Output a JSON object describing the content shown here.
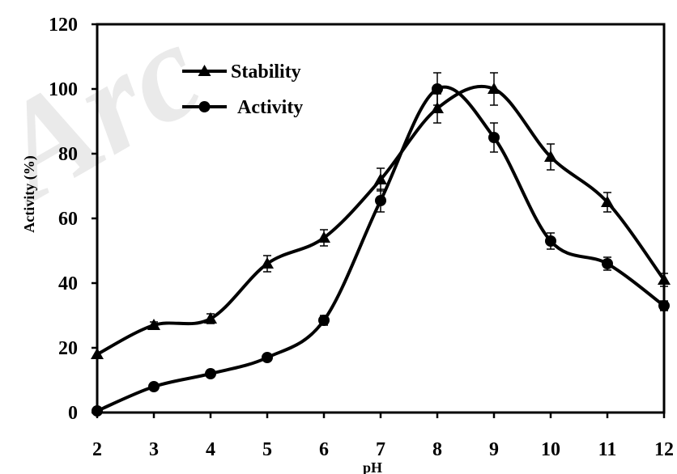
{
  "chart_data": {
    "type": "line",
    "title": "",
    "xlabel": "pH",
    "ylabel": "Activity (%)",
    "x": [
      2,
      3,
      4,
      5,
      6,
      7,
      8,
      9,
      10,
      11,
      12
    ],
    "xlim": [
      2,
      12
    ],
    "ylim": [
      0,
      120
    ],
    "xticks": [
      "2",
      "3",
      "4",
      "5",
      "6",
      "7",
      "8",
      "9",
      "10",
      "11",
      "12"
    ],
    "yticks": [
      "0",
      "20",
      "40",
      "60",
      "80",
      "100",
      "120"
    ],
    "grid": false,
    "legend_position": "top-left",
    "series": [
      {
        "name": "Stability",
        "marker": "triangle",
        "color": "#000000",
        "values": [
          18,
          27,
          29,
          46,
          54,
          72,
          94,
          100,
          79,
          65,
          41
        ],
        "errors": [
          0,
          1,
          1.5,
          2.5,
          2.5,
          3.5,
          4.5,
          5,
          4,
          3,
          2
        ]
      },
      {
        "name": "Activity",
        "marker": "circle",
        "color": "#000000",
        "values": [
          0.5,
          8,
          12,
          17,
          28.5,
          65.5,
          100,
          85,
          53,
          46,
          33
        ],
        "errors": [
          0,
          0,
          0,
          0,
          1.5,
          3.5,
          5,
          4.5,
          2.5,
          2,
          1.5
        ]
      }
    ],
    "watermark": "Arc"
  }
}
